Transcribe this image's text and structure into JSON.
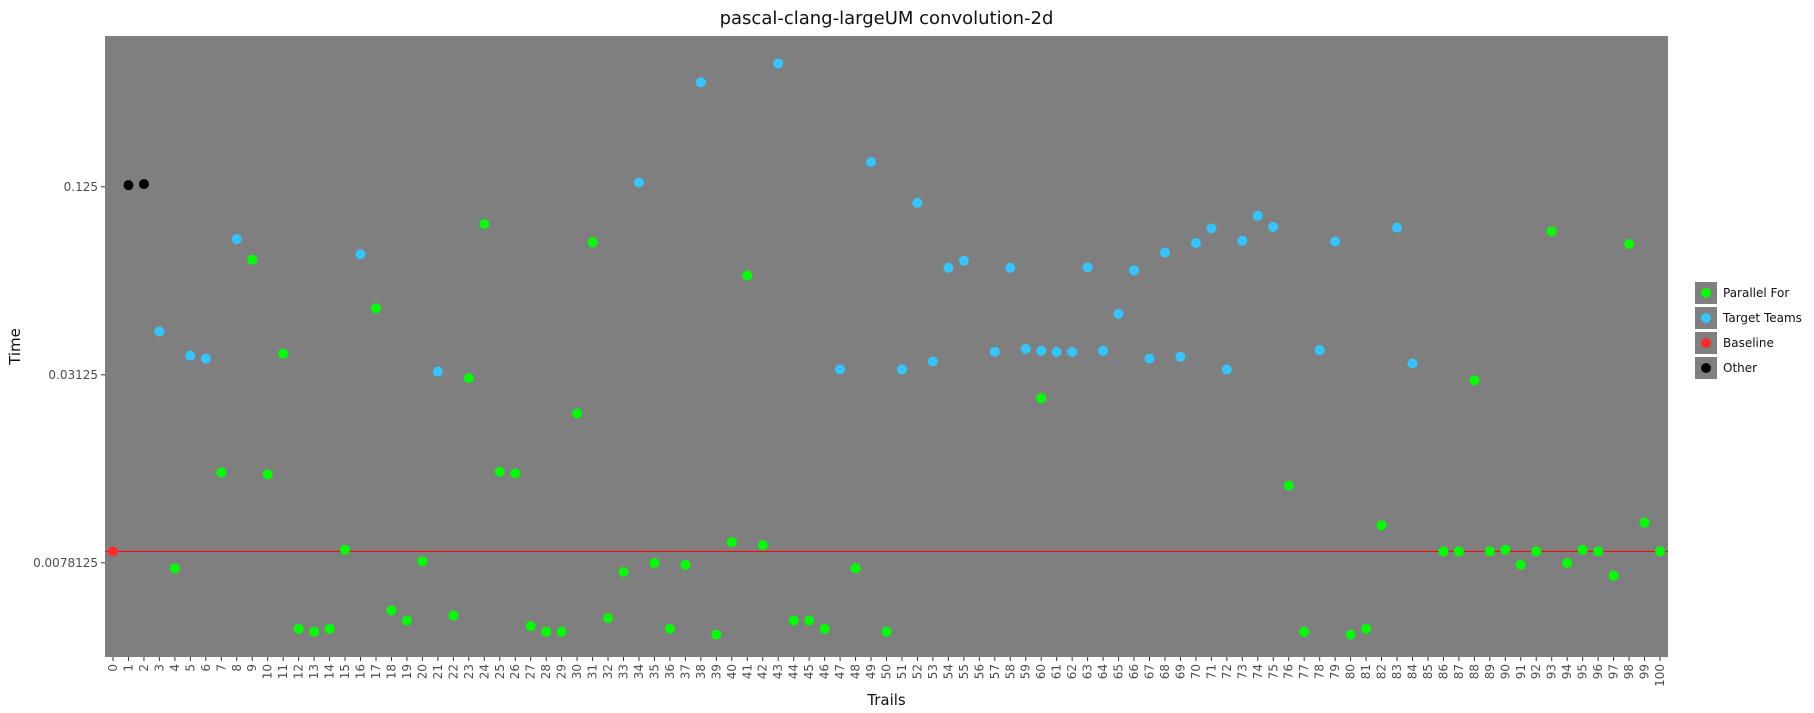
{
  "chart_data": {
    "type": "scatter",
    "title": "pascal-clang-largeUM convolution-2d",
    "xlabel": "Trails",
    "ylabel": "Time",
    "y_scale": "log2",
    "ylim": [
      0.0039,
      0.38
    ],
    "xlim": [
      0,
      100
    ],
    "x_ticks": [
      0,
      1,
      2,
      3,
      4,
      5,
      6,
      7,
      8,
      9,
      10,
      11,
      12,
      13,
      14,
      15,
      16,
      17,
      18,
      19,
      20,
      21,
      22,
      23,
      24,
      25,
      26,
      27,
      28,
      29,
      30,
      31,
      32,
      33,
      34,
      35,
      36,
      37,
      38,
      39,
      40,
      41,
      42,
      43,
      44,
      45,
      46,
      47,
      48,
      49,
      50,
      51,
      52,
      53,
      54,
      55,
      56,
      57,
      58,
      59,
      60,
      61,
      62,
      63,
      64,
      65,
      66,
      67,
      68,
      69,
      70,
      71,
      72,
      73,
      74,
      75,
      76,
      77,
      78,
      79,
      80,
      81,
      82,
      83,
      84,
      85,
      86,
      87,
      88,
      89,
      90,
      91,
      92,
      93,
      94,
      95,
      96,
      97,
      98,
      99,
      100
    ],
    "y_ticks": [
      {
        "value": 0.125,
        "label": "0.125"
      },
      {
        "value": 0.03125,
        "label": "0.03125"
      },
      {
        "value": 0.0078125,
        "label": "0.0078125"
      }
    ],
    "baseline": {
      "value": 0.0085,
      "color": "#ff0000"
    },
    "legend": "right",
    "grid": false,
    "background": "#7f7f7f",
    "series": [
      {
        "name": "Parallel For",
        "color": "#00ff00",
        "points": [
          [
            4,
            0.0075
          ],
          [
            7,
            0.0152
          ],
          [
            9,
            0.073
          ],
          [
            10,
            0.015
          ],
          [
            11,
            0.0365
          ],
          [
            12,
            0.0048
          ],
          [
            13,
            0.0047
          ],
          [
            14,
            0.0048
          ],
          [
            15,
            0.0086
          ],
          [
            17,
            0.051
          ],
          [
            18,
            0.0055
          ],
          [
            19,
            0.0051
          ],
          [
            20,
            0.0079
          ],
          [
            22,
            0.0053
          ],
          [
            23,
            0.0305
          ],
          [
            24,
            0.095
          ],
          [
            25,
            0.0153
          ],
          [
            26,
            0.0151
          ],
          [
            27,
            0.0049
          ],
          [
            28,
            0.0047
          ],
          [
            29,
            0.0047
          ],
          [
            30,
            0.0235
          ],
          [
            31,
            0.083
          ],
          [
            32,
            0.0052
          ],
          [
            33,
            0.0073
          ],
          [
            35,
            0.0078
          ],
          [
            36,
            0.0048
          ],
          [
            37,
            0.0077
          ],
          [
            39,
            0.0046
          ],
          [
            40,
            0.0091
          ],
          [
            41,
            0.065
          ],
          [
            42,
            0.0089
          ],
          [
            44,
            0.0051
          ],
          [
            45,
            0.0051
          ],
          [
            46,
            0.0048
          ],
          [
            48,
            0.0075
          ],
          [
            50,
            0.0047
          ],
          [
            60,
            0.0263
          ],
          [
            76,
            0.0138
          ],
          [
            77,
            0.0047
          ],
          [
            80,
            0.0046
          ],
          [
            81,
            0.0048
          ],
          [
            82,
            0.0103
          ],
          [
            86,
            0.0085
          ],
          [
            87,
            0.0085
          ],
          [
            88,
            0.03
          ],
          [
            89,
            0.0085
          ],
          [
            90,
            0.0086
          ],
          [
            91,
            0.0077
          ],
          [
            92,
            0.0085
          ],
          [
            93,
            0.09
          ],
          [
            94,
            0.0078
          ],
          [
            95,
            0.0086
          ],
          [
            96,
            0.0085
          ],
          [
            97,
            0.0071
          ],
          [
            98,
            0.082
          ],
          [
            99,
            0.0105
          ],
          [
            100,
            0.0085
          ]
        ]
      },
      {
        "name": "Target Teams",
        "color": "#33c5ff",
        "points": [
          [
            3,
            0.043
          ],
          [
            5,
            0.036
          ],
          [
            6,
            0.0352
          ],
          [
            8,
            0.085
          ],
          [
            16,
            0.076
          ],
          [
            21,
            0.032
          ],
          [
            34,
            0.129
          ],
          [
            38,
            0.27
          ],
          [
            43,
            0.31
          ],
          [
            47,
            0.0325
          ],
          [
            49,
            0.15
          ],
          [
            51,
            0.0325
          ],
          [
            52,
            0.111
          ],
          [
            53,
            0.0345
          ],
          [
            54,
            0.0688
          ],
          [
            55,
            0.0725
          ],
          [
            57,
            0.037
          ],
          [
            58,
            0.0688
          ],
          [
            59,
            0.0378
          ],
          [
            60,
            0.0373
          ],
          [
            61,
            0.037
          ],
          [
            62,
            0.037
          ],
          [
            63,
            0.069
          ],
          [
            64,
            0.0373
          ],
          [
            65,
            0.049
          ],
          [
            66,
            0.0675
          ],
          [
            67,
            0.0352
          ],
          [
            68,
            0.077
          ],
          [
            69,
            0.0357
          ],
          [
            70,
            0.0825
          ],
          [
            71,
            0.092
          ],
          [
            72,
            0.0325
          ],
          [
            73,
            0.084
          ],
          [
            74,
            0.101
          ],
          [
            75,
            0.093
          ],
          [
            78,
            0.0375
          ],
          [
            79,
            0.0835
          ],
          [
            83,
            0.0925
          ],
          [
            84,
            0.034
          ]
        ]
      },
      {
        "name": "Baseline",
        "color": "#ff2b2b",
        "points": [
          [
            0,
            0.0085
          ]
        ]
      },
      {
        "name": "Other",
        "color": "#000000",
        "points": [
          [
            1,
            0.1265
          ],
          [
            2,
            0.1275
          ]
        ]
      }
    ]
  }
}
